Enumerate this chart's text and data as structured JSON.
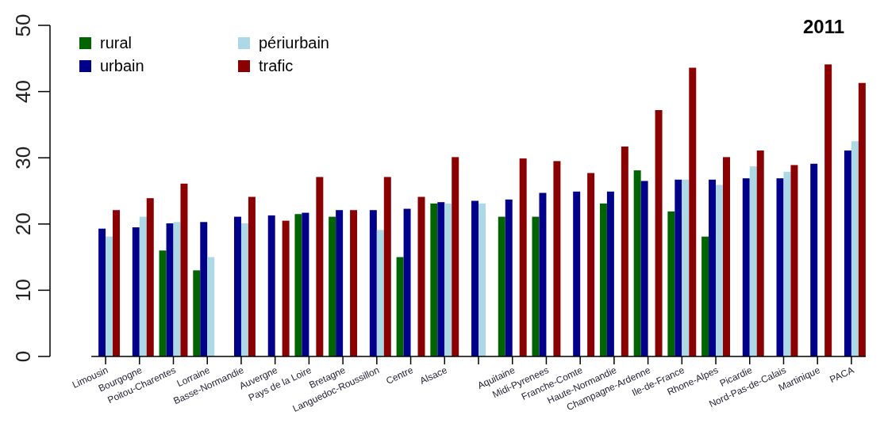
{
  "chart_data": {
    "type": "bar",
    "title": "2011",
    "categories": [
      "Limousin",
      "Bourgogne",
      "Poitou-Charentes",
      "Lorraine",
      "Basse-Normandie",
      "Auvergne",
      "Pays de la Loire",
      "Bretagne",
      "Languedoc-Roussillon",
      "Centre",
      "Alsace",
      null,
      "Aquitaine",
      "Midi-Pyrenees",
      "Franche-Comte",
      "Haute-Normandie",
      "Champagne-Ardenne",
      "Ile-de-France",
      "Rhone-Alpes",
      "Picardie",
      "Nord-Pas-de-Calais",
      "Martinique",
      "PACA"
    ],
    "series": [
      {
        "name": "rural",
        "color": "#006400",
        "values": [
          null,
          null,
          16.0,
          13.0,
          null,
          null,
          21.5,
          21.1,
          null,
          15.0,
          23.1,
          null,
          21.1,
          21.1,
          null,
          23.1,
          28.1,
          21.9,
          18.1,
          null,
          null,
          null,
          null
        ]
      },
      {
        "name": "urbain",
        "color": "#00008b",
        "values": [
          19.3,
          19.5,
          20.1,
          20.3,
          21.1,
          21.3,
          21.7,
          22.1,
          22.1,
          22.3,
          23.3,
          23.5,
          23.7,
          24.7,
          24.9,
          24.9,
          26.5,
          26.7,
          26.7,
          26.9,
          26.9,
          29.1,
          31.1
        ]
      },
      {
        "name": "périurbain",
        "color": "#add8e6",
        "values": [
          18.1,
          21.1,
          20.3,
          15.0,
          20.1,
          null,
          null,
          null,
          19.1,
          null,
          23.1,
          23.1,
          null,
          null,
          null,
          null,
          null,
          26.7,
          25.9,
          28.7,
          27.9,
          null,
          32.5
        ]
      },
      {
        "name": "trafic",
        "color": "#8b0000",
        "values": [
          22.1,
          23.9,
          26.1,
          null,
          24.1,
          20.5,
          27.1,
          22.1,
          27.1,
          24.1,
          30.1,
          null,
          29.9,
          29.5,
          27.7,
          31.7,
          37.2,
          43.6,
          30.1,
          31.1,
          28.9,
          44.1,
          41.3
        ]
      }
    ],
    "ylim": [
      0,
      50
    ],
    "yticks": [
      0,
      10,
      20,
      30,
      40,
      50
    ],
    "grid": false,
    "legend": "top left"
  }
}
